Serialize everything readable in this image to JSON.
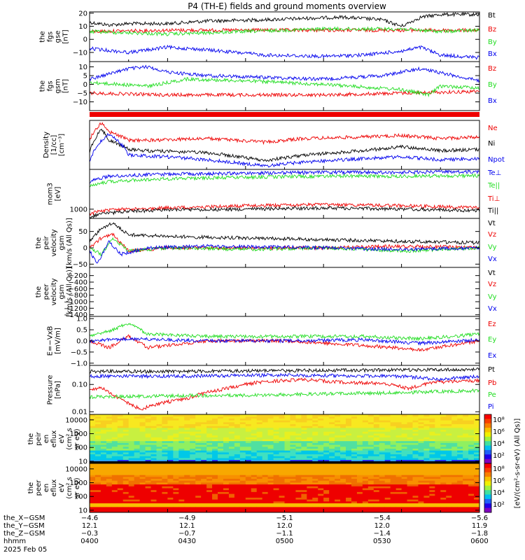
{
  "title": "P4 (TH-E) fields and ground moments overview",
  "colors": {
    "black": "#000000",
    "red": "#ee0000",
    "green": "#22dd22",
    "blue": "#0000ee"
  },
  "chart_data": [
    {
      "id": "p1",
      "type": "line",
      "ylabel": [
        "the",
        "fgs",
        "gse",
        "[nT]"
      ],
      "ylim": [
        -17,
        21
      ],
      "yticks": [
        20,
        10,
        0,
        -10
      ],
      "ytick_labels": [
        "20",
        "10",
        "0",
        "−10"
      ],
      "legend": [
        "Bt",
        "Bz",
        "By",
        "Bx"
      ],
      "series": [
        {
          "name": "Bt",
          "color": "black",
          "x": [
            0,
            0.05,
            0.1,
            0.2,
            0.3,
            0.45,
            0.55,
            0.65,
            0.75,
            0.8,
            0.85,
            0.9,
            1
          ],
          "y": [
            13,
            11,
            12,
            12,
            14,
            15,
            16,
            17,
            15,
            10,
            17,
            19,
            19
          ]
        },
        {
          "name": "Bz",
          "color": "red",
          "x": [
            0,
            0.2,
            0.5,
            0.8,
            1
          ],
          "y": [
            6,
            7,
            7,
            7,
            7
          ]
        },
        {
          "name": "By",
          "color": "green",
          "x": [
            0,
            0.1,
            0.2,
            0.4,
            0.6,
            0.8,
            0.9,
            1
          ],
          "y": [
            6,
            5,
            4,
            6,
            8,
            8,
            6,
            7
          ]
        },
        {
          "name": "Bx",
          "color": "blue",
          "x": [
            0,
            0.1,
            0.2,
            0.3,
            0.45,
            0.6,
            0.7,
            0.8,
            0.85,
            0.9,
            1
          ],
          "y": [
            -7,
            -10,
            -6,
            -8,
            -12,
            -13,
            -12,
            -9,
            -6,
            -12,
            -14
          ]
        }
      ]
    },
    {
      "id": "p2",
      "type": "line",
      "ylabel": [
        "the",
        "fgs",
        "gsm",
        "[nT]"
      ],
      "ylim": [
        -15,
        13
      ],
      "yticks": [
        10,
        5,
        0,
        -5,
        -10
      ],
      "ytick_labels": [
        "10",
        "5",
        "0",
        "−5",
        "−10"
      ],
      "legend": [
        "Bz",
        "By",
        "Bx"
      ],
      "series": [
        {
          "name": "Bz",
          "color": "red",
          "x": [
            0,
            0.2,
            0.4,
            0.6,
            0.8,
            1
          ],
          "y": [
            -5,
            -6,
            -6,
            -6,
            -5,
            -4
          ]
        },
        {
          "name": "By",
          "color": "green",
          "x": [
            0,
            0.15,
            0.25,
            0.4,
            0.6,
            0.8,
            0.87,
            0.9,
            1
          ],
          "y": [
            1,
            -1,
            3,
            2,
            0,
            -3,
            -6,
            -1,
            -2
          ]
        },
        {
          "name": "Bx",
          "color": "blue",
          "x": [
            0,
            0.1,
            0.15,
            0.2,
            0.3,
            0.45,
            0.6,
            0.75,
            0.85,
            1
          ],
          "y": [
            3,
            9,
            10,
            7,
            5,
            4,
            3,
            5,
            9,
            2
          ]
        }
      ]
    },
    {
      "id": "p3",
      "type": "line",
      "ylabel": [
        "Density",
        "[1/cc]",
        "[cm⁻³]"
      ],
      "log": true,
      "ylim": [
        0.1,
        1.5
      ],
      "yticks": [],
      "ytick_labels": [],
      "legend": [
        "Ne",
        "Ni",
        "Npot"
      ],
      "series": [
        {
          "name": "Ne",
          "color": "red",
          "x": [
            0,
            0.03,
            0.05,
            0.1,
            0.15,
            0.3,
            0.45,
            0.55,
            0.7,
            0.8,
            0.9,
            1
          ],
          "y": [
            0.5,
            1.3,
            0.8,
            0.5,
            0.5,
            0.55,
            0.45,
            0.55,
            0.6,
            0.65,
            0.55,
            0.6
          ]
        },
        {
          "name": "Ni",
          "color": "black",
          "x": [
            0,
            0.03,
            0.05,
            0.1,
            0.15,
            0.3,
            0.45,
            0.55,
            0.7,
            0.8,
            0.9,
            1
          ],
          "y": [
            0.25,
            0.9,
            0.5,
            0.3,
            0.28,
            0.25,
            0.16,
            0.22,
            0.28,
            0.35,
            0.28,
            0.3
          ]
        },
        {
          "name": "Npot",
          "color": "blue",
          "x": [
            0,
            0.05,
            0.1,
            0.2,
            0.3,
            0.45,
            0.55,
            0.7,
            0.8,
            0.9,
            1
          ],
          "y": [
            0.15,
            0.7,
            0.22,
            0.2,
            0.17,
            0.12,
            0.15,
            0.18,
            0.2,
            0.17,
            0.18
          ]
        }
      ]
    },
    {
      "id": "p4",
      "type": "line",
      "ylabel": [
        "mom3",
        "[eV]"
      ],
      "log": true,
      "ylim": [
        500,
        20000
      ],
      "yticks": [
        1000
      ],
      "ytick_labels": [
        "1000"
      ],
      "legend": [
        "Te⊥",
        "Te||",
        "Ti⊥",
        "Ti||"
      ],
      "series": [
        {
          "name": "Te⊥",
          "color": "blue",
          "x": [
            0,
            0.05,
            0.2,
            0.4,
            0.6,
            0.8,
            1
          ],
          "y": [
            8000,
            12000,
            14000,
            15000,
            16000,
            16000,
            17000
          ]
        },
        {
          "name": "Te||",
          "color": "green",
          "x": [
            0,
            0.05,
            0.2,
            0.4,
            0.6,
            0.8,
            1
          ],
          "y": [
            6000,
            8000,
            10000,
            11000,
            12000,
            12000,
            12500
          ]
        },
        {
          "name": "Ti⊥",
          "color": "red",
          "x": [
            0,
            0.03,
            0.1,
            0.2,
            0.4,
            0.6,
            0.8,
            0.9,
            1
          ],
          "y": [
            700,
            900,
            1000,
            1100,
            1300,
            1400,
            1300,
            1200,
            1100
          ]
        },
        {
          "name": "Ti||",
          "color": "black",
          "x": [
            0,
            0.03,
            0.1,
            0.2,
            0.4,
            0.6,
            0.8,
            0.9,
            1
          ],
          "y": [
            550,
            700,
            850,
            950,
            1000,
            1100,
            1000,
            950,
            900
          ]
        }
      ]
    },
    {
      "id": "p5",
      "type": "line",
      "ylabel": [
        "the",
        "peir",
        "velocity",
        "gsm",
        "[km/s (All Qs)]"
      ],
      "ylim": [
        -60,
        90
      ],
      "yticks": [
        50,
        0,
        -50
      ],
      "ytick_labels": [
        "50",
        "0",
        "−50"
      ],
      "legend": [
        "Vt",
        "Vz",
        "Vy",
        "Vx"
      ],
      "series": [
        {
          "name": "Vt",
          "color": "black",
          "x": [
            0,
            0.03,
            0.06,
            0.1,
            0.2,
            0.4,
            0.6,
            0.8,
            0.9,
            1
          ],
          "y": [
            20,
            60,
            75,
            40,
            35,
            30,
            25,
            20,
            18,
            15
          ]
        },
        {
          "name": "Vz",
          "color": "red",
          "x": [
            0,
            0.03,
            0.06,
            0.1,
            0.2,
            0.4,
            0.6,
            0.8,
            1
          ],
          "y": [
            0,
            30,
            40,
            -10,
            0,
            0,
            0,
            5,
            0
          ]
        },
        {
          "name": "Vy",
          "color": "green",
          "x": [
            0,
            0.03,
            0.06,
            0.1,
            0.2,
            0.4,
            0.6,
            0.8,
            1
          ],
          "y": [
            0,
            -20,
            30,
            -10,
            0,
            -5,
            0,
            -10,
            0
          ]
        },
        {
          "name": "Vx",
          "color": "blue",
          "x": [
            0,
            0.02,
            0.05,
            0.08,
            0.15,
            0.3,
            0.6,
            0.8,
            1
          ],
          "y": [
            -10,
            -50,
            20,
            -20,
            0,
            5,
            0,
            -5,
            0
          ]
        }
      ]
    },
    {
      "id": "p6",
      "type": "line",
      "ylabel": [
        "the",
        "peer",
        "velocity",
        "gsm",
        "[km/s (All Qs)]"
      ],
      "ylim": [
        -1450,
        50
      ],
      "yticks": [
        -200,
        -400,
        -600,
        -800,
        -1000,
        -1200,
        -1400
      ],
      "ytick_labels": [
        "−200",
        "−400",
        "−600",
        "−800",
        "−1000",
        "−1200",
        "−1400"
      ],
      "legend": [
        "Vt",
        "Vz",
        "Vy",
        "Vx"
      ],
      "series": []
    },
    {
      "id": "p7",
      "type": "line",
      "ylabel": [
        "E=−VxB",
        "[mV/m]"
      ],
      "ylim": [
        -1.1,
        1.1
      ],
      "yticks": [
        1.0,
        0.5,
        0.0,
        -0.5,
        -1.0
      ],
      "ytick_labels": [
        "1.0",
        "0.5",
        "0.0",
        "−0.5",
        "−1.0"
      ],
      "legend": [
        "Ez",
        "Ey",
        "Ex"
      ],
      "series": [
        {
          "name": "Ez",
          "color": "red",
          "x": [
            0,
            0.05,
            0.1,
            0.15,
            0.3,
            0.5,
            0.7,
            0.85,
            1
          ],
          "y": [
            0,
            -0.3,
            0.2,
            -0.3,
            0,
            0,
            -0.2,
            -0.4,
            0
          ]
        },
        {
          "name": "Ey",
          "color": "green",
          "x": [
            0,
            0.06,
            0.1,
            0.15,
            0.3,
            0.5,
            0.7,
            0.85,
            1
          ],
          "y": [
            0.2,
            0.5,
            0.8,
            0.3,
            0.2,
            0.2,
            0.2,
            0.1,
            0.3
          ]
        },
        {
          "name": "Ex",
          "color": "blue",
          "x": [
            0,
            0.1,
            0.3,
            0.5,
            0.7,
            0.85,
            1
          ],
          "y": [
            0,
            0.1,
            0,
            0,
            0.05,
            -0.1,
            0.05
          ]
        }
      ]
    },
    {
      "id": "p8",
      "type": "line",
      "ylabel": [
        "Pressure",
        "[nPa]"
      ],
      "log": true,
      "ylim": [
        0.008,
        0.5
      ],
      "yticks": [
        0.1,
        0.01
      ],
      "ytick_labels": [
        "0.10",
        "0.01"
      ],
      "legend": [
        "Pt",
        "Pb",
        "Pe",
        "Pi"
      ],
      "series": [
        {
          "name": "Pt",
          "color": "black",
          "x": [
            0,
            0.2,
            0.5,
            0.8,
            1
          ],
          "y": [
            0.3,
            0.3,
            0.32,
            0.34,
            0.35
          ]
        },
        {
          "name": "Pi",
          "color": "blue",
          "x": [
            0,
            0.2,
            0.5,
            0.8,
            0.9,
            1
          ],
          "y": [
            0.2,
            0.2,
            0.22,
            0.2,
            0.15,
            0.2
          ]
        },
        {
          "name": "Pb",
          "color": "red",
          "x": [
            0,
            0.03,
            0.06,
            0.1,
            0.13,
            0.18,
            0.25,
            0.35,
            0.45,
            0.55,
            0.65,
            0.75,
            0.82,
            0.88,
            1
          ],
          "y": [
            0.06,
            0.08,
            0.04,
            0.02,
            0.012,
            0.02,
            0.03,
            0.07,
            0.13,
            0.15,
            0.12,
            0.11,
            0.07,
            0.12,
            0.14
          ]
        },
        {
          "name": "Pe",
          "color": "green",
          "x": [
            0,
            0.2,
            0.4,
            0.6,
            0.8,
            1
          ],
          "y": [
            0.035,
            0.038,
            0.04,
            0.045,
            0.05,
            0.06
          ]
        }
      ]
    },
    {
      "id": "p9",
      "type": "heatmap",
      "ylabel": [
        "the",
        "peir",
        "en",
        "eflux",
        "eV",
        "(cm² s",
        "sr eV)"
      ],
      "log": true,
      "ylim": [
        7,
        25000
      ],
      "yticks": [
        10000,
        1000,
        100,
        10
      ],
      "ytick_labels": [
        "10000",
        "1000",
        "100",
        "10"
      ]
    },
    {
      "id": "p10",
      "type": "heatmap",
      "ylabel": [
        "the",
        "peer",
        "en",
        "eflux",
        "eV",
        "(cm² s",
        "sr eV)"
      ],
      "log": true,
      "ylim": [
        7,
        25000
      ],
      "yticks": [
        10000,
        1000,
        100,
        10
      ],
      "ytick_labels": [
        "10000",
        "1000",
        "100",
        "10"
      ]
    }
  ],
  "colorbar": {
    "label": "[eV/(cm²-s-sr-eV) (All Qs)]",
    "tick_labels": [
      "10⁸",
      "10⁶",
      "10⁴",
      "10²",
      "10⁸",
      "10⁶",
      "10⁴",
      "10²"
    ]
  },
  "xaxis": {
    "rows": [
      {
        "label": "the_X−GSM",
        "values": [
          "−4.6",
          "−4.9",
          "−5.1",
          "−5.4",
          "−5.6"
        ]
      },
      {
        "label": "the_Y−GSM",
        "values": [
          "12.1",
          "12.1",
          "12.0",
          "12.0",
          "11.9"
        ]
      },
      {
        "label": "the_Z−GSM",
        "values": [
          "−0.3",
          "−0.7",
          "−1.1",
          "−1.4",
          "−1.8"
        ]
      },
      {
        "label": "hhmm",
        "values": [
          "0400",
          "0430",
          "0500",
          "0530",
          "0600"
        ]
      }
    ],
    "date": "2025 Feb 05"
  }
}
